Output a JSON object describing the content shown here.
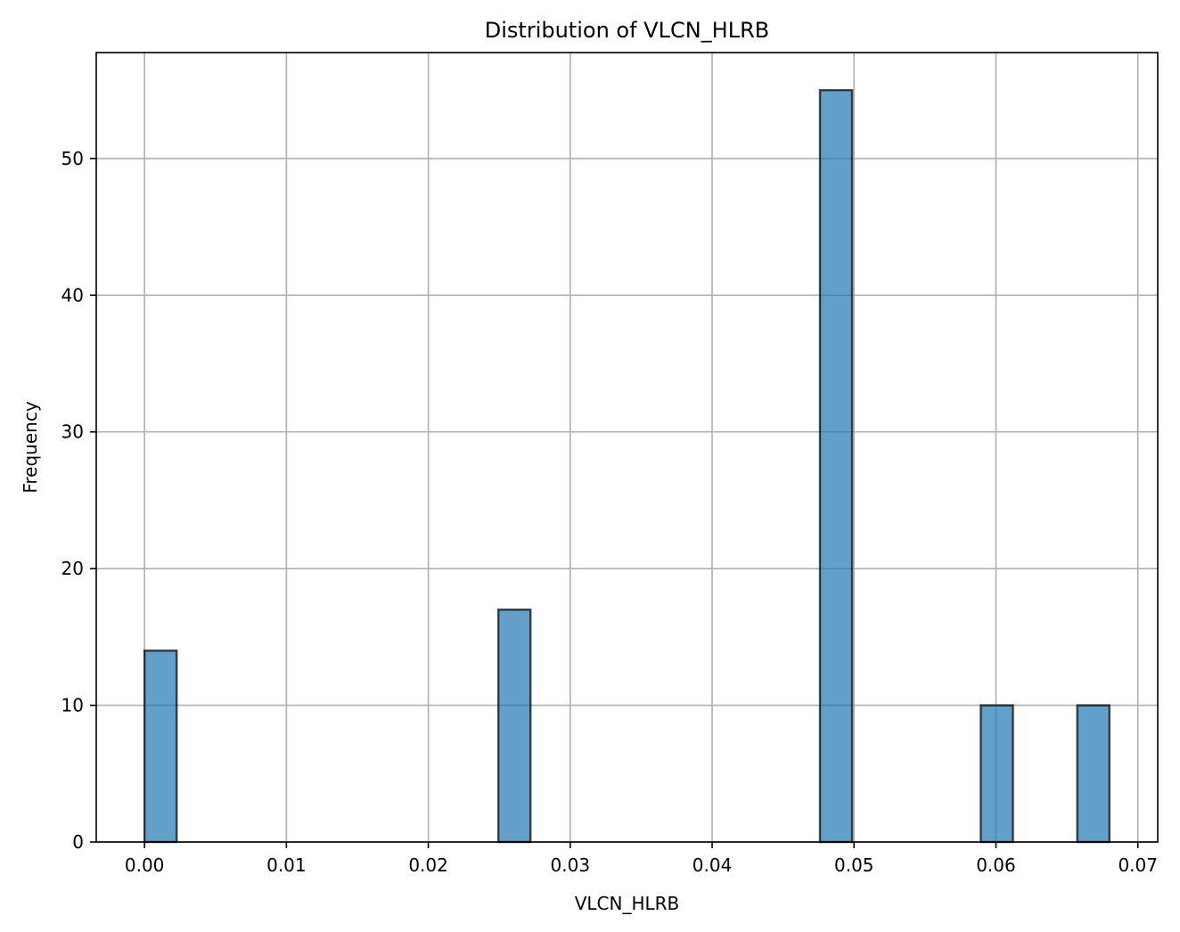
{
  "chart_data": {
    "type": "bar",
    "title": "Distribution of VLCN_HLRB",
    "xlabel": "VLCN_HLRB",
    "ylabel": "Frequency",
    "xlim": [
      -0.0034,
      0.0714
    ],
    "ylim": [
      0,
      57.75
    ],
    "grid": true,
    "xticks": [
      0.0,
      0.01,
      0.02,
      0.03,
      0.04,
      0.05,
      0.06,
      0.07
    ],
    "xtick_labels": [
      "0.00",
      "0.01",
      "0.02",
      "0.03",
      "0.04",
      "0.05",
      "0.06",
      "0.07"
    ],
    "yticks": [
      0,
      10,
      20,
      30,
      40,
      50
    ],
    "ytick_labels": [
      "0",
      "10",
      "20",
      "30",
      "40",
      "50"
    ],
    "bin_width": 0.002267,
    "bars": [
      {
        "x_start": 0.0,
        "x_end": 0.002267,
        "value": 14
      },
      {
        "x_start": 0.024933,
        "x_end": 0.0272,
        "value": 17
      },
      {
        "x_start": 0.047598,
        "x_end": 0.049865,
        "value": 55
      },
      {
        "x_start": 0.058931,
        "x_end": 0.061198,
        "value": 10
      },
      {
        "x_start": 0.065731,
        "x_end": 0.067998,
        "value": 10
      }
    ],
    "colors": {
      "bar_fill": "#1f77b4",
      "bar_fill_opacity": 0.7,
      "bar_edge": "#000000",
      "grid": "#b0b0b0",
      "axes": "#000000"
    }
  }
}
